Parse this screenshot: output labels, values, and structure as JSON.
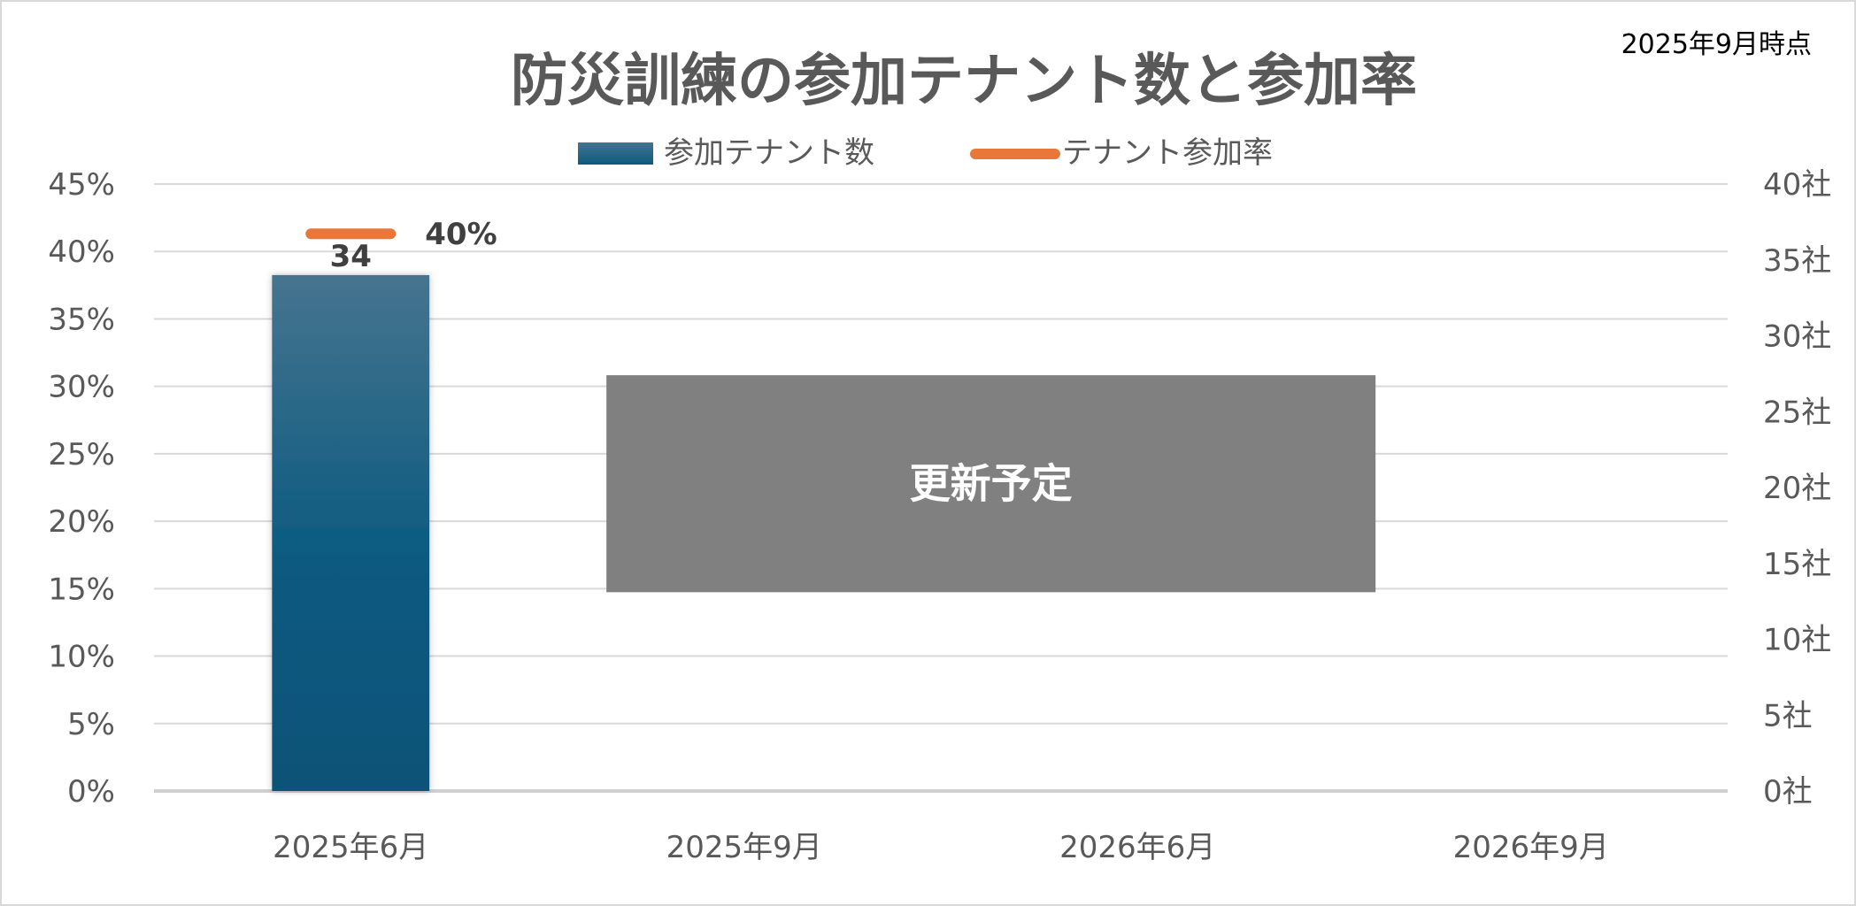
{
  "header": {
    "as_of_label": "2025年9月時点"
  },
  "chart_data": {
    "type": "bar",
    "title": "防災訓練の参加テナント数と参加率",
    "categories": [
      "2025年6月",
      "2025年9月",
      "2026年6月",
      "2026年9月"
    ],
    "series": [
      {
        "name": "参加テナント数",
        "type": "bar",
        "axis": "right",
        "values": [
          34,
          null,
          null,
          null
        ],
        "data_labels": [
          "34",
          "",
          "",
          ""
        ],
        "color": "#0b5a80",
        "color_top": "#46748f"
      },
      {
        "name": "テナント参加率",
        "type": "line",
        "axis": "left",
        "values": [
          40,
          null,
          null,
          null
        ],
        "data_labels": [
          "40%",
          "",
          "",
          ""
        ],
        "color": "#e8773a"
      }
    ],
    "y_left": {
      "min": 0,
      "max": 45,
      "step": 5,
      "tick_labels": [
        "0%",
        "5%",
        "10%",
        "15%",
        "20%",
        "25%",
        "30%",
        "35%",
        "40%",
        "45%"
      ]
    },
    "y_right": {
      "min": 0,
      "max": 40,
      "step": 5,
      "tick_labels": [
        "0社",
        "5社",
        "10社",
        "15社",
        "20社",
        "25社",
        "30社",
        "35社",
        "40社"
      ]
    },
    "grid": true,
    "legend_position": "top-center",
    "placeholder_box": {
      "text": "更新予定",
      "color": "#808080",
      "from_category": 1,
      "to_category": 3,
      "y_top": 27.4,
      "y_bottom": 13.1
    }
  }
}
